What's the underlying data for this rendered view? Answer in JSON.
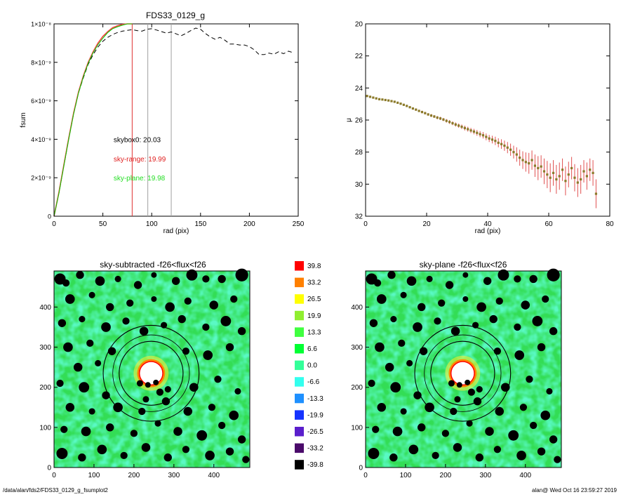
{
  "footer": {
    "path": "/data/alan/fds2/FDS33_0129_g_fsumplot2",
    "user_time": "alan@  Wed Oct 16 23:59:27 2019"
  },
  "colors": {
    "fsum_curve": "#ff4040",
    "fsum_plane": "#00cc00",
    "fsum_box": "#000000",
    "vline_red": "#e03030",
    "vline_gray": "#a0a0a0",
    "mu_points": "#8b7a2a",
    "mu_errbars": "#e05050",
    "image_bg": "#33dd55",
    "mask": "#000000",
    "annulus": "#000000"
  },
  "chart_data": [
    {
      "type": "line",
      "title": "FDS33_0129_g",
      "xlabel": "rad (pix)",
      "ylabel": "fsum",
      "xlim": [
        0,
        250
      ],
      "ylim": [
        0,
        1e-08
      ],
      "xticks": [
        0,
        50,
        100,
        150,
        200,
        250
      ],
      "yticks": [
        {
          "v": 0,
          "label": "0"
        },
        {
          "v": 2e-09,
          "label": "2×10⁻⁹"
        },
        {
          "v": 4e-09,
          "label": "4×10⁻⁹"
        },
        {
          "v": 6e-09,
          "label": "6×10⁻⁹"
        },
        {
          "v": 8e-09,
          "label": "8×10⁻⁹"
        },
        {
          "v": 1e-08,
          "label": "1×10⁻⁸"
        }
      ],
      "vlines": [
        {
          "x": 80,
          "color": "red"
        },
        {
          "x": 96,
          "color": "gray"
        },
        {
          "x": 120,
          "color": "gray"
        }
      ],
      "annotations": [
        {
          "text": "skybox0: 20.03",
          "color": "black",
          "x": 48,
          "y": 4e-09
        },
        {
          "text": "sky-range: 19.99",
          "color": "red",
          "x": 48,
          "y": 3e-09
        },
        {
          "text": "sky-plane: 19.98",
          "color": "green",
          "x": 48,
          "y": 2e-09
        }
      ],
      "series": [
        {
          "style": "dashed",
          "color": "black",
          "x": [
            0,
            5,
            10,
            15,
            20,
            25,
            30,
            35,
            40,
            45,
            50,
            55,
            60,
            65,
            70,
            75,
            80,
            85,
            90,
            95,
            100,
            105,
            110,
            115,
            120,
            125,
            130,
            135,
            140,
            145,
            150,
            155,
            160,
            165,
            170,
            175,
            180,
            185,
            190,
            195,
            200,
            205,
            210,
            215,
            220,
            225,
            230,
            235,
            240,
            245
          ],
          "y": [
            0,
            1.2e-09,
            2.6e-09,
            4e-09,
            5.3e-09,
            6.4e-09,
            7.2e-09,
            7.9e-09,
            8.4e-09,
            8.8e-09,
            9.1e-09,
            9.3e-09,
            9.45e-09,
            9.55e-09,
            9.62e-09,
            9.66e-09,
            9.7e-09,
            9.65e-09,
            9.62e-09,
            9.72e-09,
            9.75e-09,
            9.68e-09,
            9.6e-09,
            9.52e-09,
            9.58e-09,
            9.48e-09,
            9.38e-09,
            9.5e-09,
            9.65e-09,
            9.78e-09,
            9.72e-09,
            9.5e-09,
            9.32e-09,
            9.2e-09,
            9.3e-09,
            9.15e-09,
            8.95e-09,
            8.95e-09,
            8.9e-09,
            8.9e-09,
            8.82e-09,
            8.65e-09,
            8.4e-09,
            8.4e-09,
            8.48e-09,
            8.42e-09,
            8.55e-09,
            8.45e-09,
            8.58e-09,
            8.5e-09
          ]
        },
        {
          "style": "solid",
          "color": "red",
          "x": [
            0,
            5,
            10,
            15,
            20,
            25,
            30,
            35,
            40,
            45,
            50,
            55,
            60,
            65,
            70,
            75,
            80
          ],
          "y": [
            0,
            1.25e-09,
            2.65e-09,
            4.05e-09,
            5.35e-09,
            6.45e-09,
            7.3e-09,
            8e-09,
            8.55e-09,
            9e-09,
            9.35e-09,
            9.6e-09,
            9.8e-09,
            9.9e-09,
            9.97e-09,
            1e-08,
            1e-08
          ]
        },
        {
          "style": "solid",
          "color": "green",
          "x": [
            0,
            5,
            10,
            15,
            20,
            25,
            30,
            35,
            40,
            45,
            50,
            55,
            60,
            65,
            70,
            75,
            80
          ],
          "y": [
            0,
            1.2e-09,
            2.6e-09,
            4e-09,
            5.3e-09,
            6.4e-09,
            7.25e-09,
            7.95e-09,
            8.5e-09,
            8.92e-09,
            9.25e-09,
            9.55e-09,
            9.75e-09,
            9.85e-09,
            9.93e-09,
            1e-08,
            1e-08
          ]
        }
      ]
    },
    {
      "type": "scatter",
      "title": "",
      "xlabel": "rad (pix)",
      "ylabel": "μ",
      "xlim": [
        0,
        80
      ],
      "ylim": [
        32,
        20
      ],
      "xticks": [
        0,
        20,
        40,
        60,
        80
      ],
      "yticks": [
        20,
        22,
        24,
        26,
        28,
        30,
        32
      ],
      "points": {
        "x": [
          0.5,
          1.5,
          2.5,
          3.5,
          4.5,
          5.5,
          6.5,
          7.5,
          8.5,
          9.5,
          10.5,
          11.5,
          12.5,
          13.5,
          14.5,
          15.5,
          16.5,
          17.5,
          18.5,
          19.5,
          20.5,
          21.5,
          22.5,
          23.5,
          24.5,
          25.5,
          26.5,
          27.5,
          28.5,
          29.5,
          30.5,
          31.5,
          32.5,
          33.5,
          34.5,
          35.5,
          36.5,
          37.5,
          38.5,
          39.5,
          40.5,
          41.5,
          42.5,
          43.5,
          44.5,
          45.5,
          46.5,
          47.5,
          48.5,
          49.5,
          50.5,
          51.5,
          52.5,
          53.5,
          54.5,
          55.5,
          56.5,
          57.5,
          58.5,
          59.5,
          60.5,
          61.5,
          62.5,
          63.5,
          64.5,
          65.5,
          66.5,
          67.5,
          68.5,
          69.5,
          70.5,
          71.5,
          72.5,
          73.5,
          74.5,
          75.5
        ],
        "y": [
          24.5,
          24.55,
          24.6,
          24.65,
          24.7,
          24.72,
          24.75,
          24.78,
          24.82,
          24.86,
          24.92,
          24.98,
          25.05,
          25.12,
          25.2,
          25.28,
          25.35,
          25.43,
          25.5,
          25.57,
          25.65,
          25.72,
          25.78,
          25.85,
          25.9,
          25.97,
          26.05,
          26.12,
          26.2,
          26.28,
          26.35,
          26.42,
          26.5,
          26.57,
          26.65,
          26.72,
          26.8,
          26.88,
          26.95,
          27.05,
          27.15,
          27.22,
          27.3,
          27.42,
          27.5,
          27.6,
          27.72,
          27.85,
          28.0,
          28.15,
          28.35,
          28.5,
          28.62,
          28.7,
          28.5,
          28.85,
          29.0,
          28.9,
          29.2,
          29.4,
          29.6,
          29.3,
          29.7,
          29.5,
          29.1,
          29.8,
          29.4,
          29.0,
          29.6,
          29.9,
          29.7,
          29.2,
          29.5,
          29.1,
          29.3,
          30.6
        ],
        "err": [
          0.03,
          0.03,
          0.03,
          0.03,
          0.04,
          0.04,
          0.04,
          0.04,
          0.05,
          0.05,
          0.05,
          0.05,
          0.06,
          0.06,
          0.06,
          0.07,
          0.07,
          0.07,
          0.08,
          0.08,
          0.08,
          0.09,
          0.09,
          0.1,
          0.1,
          0.1,
          0.11,
          0.12,
          0.12,
          0.13,
          0.13,
          0.14,
          0.15,
          0.15,
          0.16,
          0.17,
          0.18,
          0.19,
          0.2,
          0.21,
          0.22,
          0.24,
          0.26,
          0.28,
          0.3,
          0.32,
          0.35,
          0.38,
          0.4,
          0.45,
          0.5,
          0.55,
          0.6,
          0.65,
          0.6,
          0.7,
          0.75,
          0.7,
          0.8,
          0.85,
          0.9,
          0.8,
          0.9,
          0.85,
          0.7,
          0.9,
          0.8,
          0.7,
          0.85,
          0.9,
          0.9,
          0.7,
          0.85,
          0.7,
          0.8,
          0.9
        ]
      }
    },
    {
      "type": "heatmap",
      "title": "sky-subtracted -f26<flux<f26",
      "xlim": [
        0,
        490
      ],
      "ylim": [
        0,
        490
      ],
      "xticks": [
        0,
        100,
        200,
        300,
        400
      ],
      "yticks": [
        0,
        100,
        200,
        300,
        400
      ],
      "center": [
        243,
        235
      ],
      "annulus_radii": [
        80,
        96,
        120
      ],
      "inner_mask_radius": 28,
      "masked_sources": [
        [
          15,
          470,
          14
        ],
        [
          30,
          460,
          9
        ],
        [
          65,
          480,
          10
        ],
        [
          115,
          465,
          12
        ],
        [
          160,
          470,
          8
        ],
        [
          210,
          455,
          10
        ],
        [
          250,
          480,
          7
        ],
        [
          305,
          465,
          10
        ],
        [
          345,
          480,
          14
        ],
        [
          380,
          470,
          9
        ],
        [
          420,
          470,
          10
        ],
        [
          470,
          480,
          16
        ],
        [
          40,
          420,
          12
        ],
        [
          95,
          430,
          8
        ],
        [
          140,
          400,
          10
        ],
        [
          190,
          410,
          9
        ],
        [
          250,
          420,
          7
        ],
        [
          290,
          400,
          12
        ],
        [
          335,
          415,
          9
        ],
        [
          400,
          405,
          11
        ],
        [
          450,
          420,
          9
        ],
        [
          20,
          360,
          10
        ],
        [
          70,
          370,
          8
        ],
        [
          130,
          350,
          12
        ],
        [
          180,
          365,
          9
        ],
        [
          225,
          340,
          11
        ],
        [
          275,
          355,
          8
        ],
        [
          320,
          370,
          10
        ],
        [
          380,
          350,
          9
        ],
        [
          430,
          365,
          13
        ],
        [
          470,
          340,
          10
        ],
        [
          35,
          300,
          12
        ],
        [
          90,
          310,
          9
        ],
        [
          145,
          290,
          10
        ],
        [
          60,
          250,
          11
        ],
        [
          110,
          260,
          8
        ],
        [
          330,
          290,
          9
        ],
        [
          385,
          280,
          12
        ],
        [
          440,
          300,
          10
        ],
        [
          15,
          210,
          9
        ],
        [
          75,
          200,
          13
        ],
        [
          130,
          180,
          10
        ],
        [
          350,
          200,
          11
        ],
        [
          410,
          220,
          9
        ],
        [
          460,
          190,
          8
        ],
        [
          40,
          150,
          11
        ],
        [
          95,
          140,
          8
        ],
        [
          160,
          150,
          12
        ],
        [
          220,
          140,
          9
        ],
        [
          280,
          165,
          10
        ],
        [
          335,
          140,
          11
        ],
        [
          395,
          150,
          9
        ],
        [
          450,
          130,
          12
        ],
        [
          25,
          95,
          9
        ],
        [
          80,
          90,
          12
        ],
        [
          140,
          100,
          10
        ],
        [
          200,
          85,
          9
        ],
        [
          260,
          110,
          8
        ],
        [
          310,
          90,
          11
        ],
        [
          370,
          80,
          13
        ],
        [
          420,
          105,
          9
        ],
        [
          470,
          70,
          10
        ],
        [
          20,
          35,
          14
        ],
        [
          70,
          25,
          10
        ],
        [
          120,
          45,
          12
        ],
        [
          175,
          30,
          9
        ],
        [
          230,
          50,
          11
        ],
        [
          285,
          25,
          10
        ],
        [
          330,
          45,
          9
        ],
        [
          390,
          30,
          12
        ],
        [
          440,
          40,
          10
        ],
        [
          480,
          20,
          9
        ],
        [
          215,
          210,
          8
        ],
        [
          235,
          206,
          7
        ],
        [
          255,
          212,
          7
        ],
        [
          265,
          188,
          9
        ],
        [
          285,
          195,
          8
        ],
        [
          230,
          170,
          8
        ]
      ]
    },
    {
      "type": "heatmap",
      "title": "sky-plane -f26<flux<f26",
      "xlim": [
        0,
        490
      ],
      "ylim": [
        0,
        490
      ],
      "xticks": [
        0,
        100,
        200,
        300,
        400
      ],
      "yticks": [
        0,
        100,
        200,
        300,
        400
      ],
      "center": [
        243,
        235
      ],
      "annulus_radii": [
        80,
        96,
        120
      ],
      "inner_mask_radius": 28
    }
  ],
  "colorbar": {
    "labels": [
      "39.8",
      "33.2",
      "26.5",
      "19.9",
      "13.3",
      "6.6",
      "0.0",
      "-6.6",
      "-13.3",
      "-19.9",
      "-26.5",
      "-33.2",
      "-39.8"
    ],
    "colors": [
      "#ff0000",
      "#ff8000",
      "#ffff00",
      "#90ee30",
      "#40ff40",
      "#00ff33",
      "#33ff99",
      "#33ffee",
      "#1e90ff",
      "#1533ff",
      "#5a1ecc",
      "#4a0a6a",
      "#000000"
    ]
  }
}
